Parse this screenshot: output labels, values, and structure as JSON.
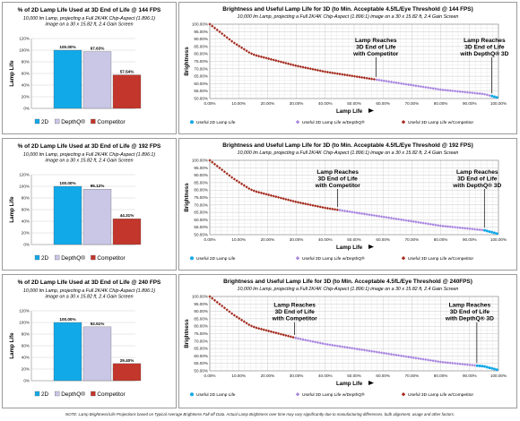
{
  "chart_data": [
    {
      "type": "bar",
      "title": "% of 2D Lamp Life Used at 3D End of Life @ 144 FPS",
      "subtitle": [
        "10,000 lm Lamp, projecting a Full 2K/4K Chip-Aspect (1.896:1)",
        "image on a 30 x 15.82 ft, 2.4 Gain Screen"
      ],
      "ylabel": "Lamp Life",
      "ylim": [
        0,
        120
      ],
      "yticks": [
        "0%",
        "20%",
        "40%",
        "60%",
        "80%",
        "100%",
        "120%"
      ],
      "series": [
        {
          "name": "2D",
          "color": "#12a9e8",
          "values": [
            100.0
          ],
          "label": "100.00%"
        },
        {
          "name": "DepthQ®",
          "color": "#c9c6e6",
          "values": [
            97.63
          ],
          "label": "97.63%"
        },
        {
          "name": "Competitor",
          "color": "#c2362b",
          "values": [
            57.54
          ],
          "label": "57.54%"
        }
      ]
    },
    {
      "type": "line",
      "title": "Brightness and Useful Lamp Life for 3D (to Min. Acceptable 4.5fL/Eye Threshold @ 144 FPS)",
      "subtitle": [
        "10,000 lm Lamp, projecting a Full 2K/4K Chip-Aspect (1.896:1) image on a 30 x 15.82 ft, 2.4 Gain Screen"
      ],
      "xlabel": "Lamp Life",
      "ylabel": "Brightness",
      "xlim": [
        0,
        100
      ],
      "ylim": [
        50,
        100
      ],
      "xticks": [
        "0.00%",
        "10.00%",
        "20.00%",
        "30.00%",
        "40.00%",
        "50.00%",
        "60.00%",
        "70.00%",
        "80.00%",
        "90.00%",
        "100.00%"
      ],
      "yticks": [
        "50.00%",
        "55.00%",
        "60.00%",
        "65.00%",
        "70.00%",
        "75.00%",
        "80.00%",
        "85.00%",
        "90.00%",
        "95.00%",
        "100.00%"
      ],
      "decay_x": [
        0,
        2,
        4,
        6,
        8,
        10,
        12,
        14,
        16,
        20,
        25,
        30,
        35,
        40,
        45,
        50,
        55,
        60,
        65,
        70,
        75,
        80,
        85,
        90,
        95,
        98,
        100
      ],
      "decay_y": [
        100,
        97,
        94,
        91,
        88,
        85.5,
        83,
        80.5,
        79,
        77,
        74.5,
        72,
        70,
        68,
        66.5,
        65,
        63.5,
        62,
        60.5,
        59,
        57.5,
        56,
        55,
        54,
        53,
        51.5,
        50.5
      ],
      "competitor_end": 57.54,
      "depthq_end": 97.63,
      "annotations": [
        {
          "text": [
            "Lamp Reaches",
            "3D End of Life",
            "with Competitor"
          ],
          "x": 57.54,
          "y": 88
        },
        {
          "text": [
            "Lamp Reaches",
            "3D End of Life",
            "with DepthQ® 3D"
          ],
          "x": 97.63,
          "y": 88
        }
      ],
      "legend": [
        "Useful 2D Lamp Life",
        "Useful 3D Lamp Life w/DepthQ®",
        "Useful 3D Lamp Life w/Competitor"
      ]
    },
    {
      "type": "bar",
      "title": "% of 2D Lamp Life Used at 3D End of Life @ 192 FPS",
      "subtitle": [
        "10,000 lm Lamp, projecting a Full 2K/4K Chip-Aspect (1.896:1)",
        "image on a 30 x 15.82 ft, 2.4 Gain Screen"
      ],
      "ylabel": "Lamp Life",
      "ylim": [
        0,
        120
      ],
      "yticks": [
        "0%",
        "20%",
        "40%",
        "60%",
        "80%",
        "100%",
        "120%"
      ],
      "series": [
        {
          "name": "2D",
          "color": "#12a9e8",
          "values": [
            100.0
          ],
          "label": "100.00%"
        },
        {
          "name": "DepthQ®",
          "color": "#c9c6e6",
          "values": [
            95.12
          ],
          "label": "95.12%"
        },
        {
          "name": "Competitor",
          "color": "#c2362b",
          "values": [
            44.31
          ],
          "label": "44.31%"
        }
      ]
    },
    {
      "type": "line",
      "title": "Brightness and Useful Lamp Life for 3D (to Min. Acceptable 4.5fL/Eye Threshold @ 192 FPS)",
      "subtitle": [
        "10,000 lm Lamp, projecting a Full 2K/4K Chip-Aspect (1.896:1) image on a 30 x 15.82 ft, 2.4 Gain Screen"
      ],
      "xlabel": "Lamp Life",
      "ylabel": "Brightness",
      "xlim": [
        0,
        100
      ],
      "ylim": [
        50,
        100
      ],
      "xticks": [
        "0.00%",
        "10.00%",
        "20.00%",
        "30.00%",
        "40.00%",
        "50.00%",
        "60.00%",
        "70.00%",
        "80.00%",
        "90.00%",
        "100.00%"
      ],
      "yticks": [
        "50.00%",
        "55.00%",
        "60.00%",
        "65.00%",
        "70.00%",
        "75.00%",
        "80.00%",
        "85.00%",
        "90.00%",
        "95.00%",
        "100.00%"
      ],
      "decay_x": [
        0,
        2,
        4,
        6,
        8,
        10,
        12,
        14,
        16,
        20,
        25,
        30,
        35,
        40,
        45,
        50,
        55,
        60,
        65,
        70,
        75,
        80,
        85,
        90,
        95,
        98,
        100
      ],
      "decay_y": [
        100,
        97,
        94,
        91,
        88,
        85.5,
        83,
        80.5,
        79,
        77,
        74.5,
        72,
        70,
        68,
        66.5,
        65,
        63.5,
        62,
        60.5,
        59,
        57.5,
        56,
        55,
        54,
        53,
        51.5,
        50.5
      ],
      "competitor_end": 44.31,
      "depthq_end": 95.12,
      "annotations": [
        {
          "text": [
            "Lamp Reaches",
            "3D End of Life",
            "with Competitor"
          ],
          "x": 44.31,
          "y": 91
        },
        {
          "text": [
            "Lamp Reaches",
            "3D End of Life",
            "with DepthQ® 3D"
          ],
          "x": 95.12,
          "y": 91
        }
      ],
      "legend": [
        "Useful 2D Lamp Life",
        "Useful 3D Lamp Life w/DepthQ®",
        "Useful 3D Lamp Life w/Competitor"
      ]
    },
    {
      "type": "bar",
      "title": "% of 2D Lamp Life Used at 3D End of Life @ 240 FPS",
      "subtitle": [
        "10,000 lm Lamp, projecting a Full 2K/4K Chip-Aspect (1.896:1)",
        "image on a 30 x 15.82 ft, 2.4 Gain Screen"
      ],
      "ylabel": "Lamp Life",
      "ylim": [
        0,
        120
      ],
      "yticks": [
        "0%",
        "20%",
        "40%",
        "60%",
        "80%",
        "100%",
        "120%"
      ],
      "series": [
        {
          "name": "2D",
          "color": "#12a9e8",
          "values": [
            100.0
          ],
          "label": "100.00%"
        },
        {
          "name": "DepthQ®",
          "color": "#c9c6e6",
          "values": [
            92.51
          ],
          "label": "92.51%"
        },
        {
          "name": "Competitor",
          "color": "#c2362b",
          "values": [
            29.4
          ],
          "label": "29.40%"
        }
      ]
    },
    {
      "type": "line",
      "title": "Brightness and Useful Lamp Life for 3D (to Min. Acceptable 4.5fL/Eye Threshold @ 240FPS)",
      "subtitle": [
        "10,000 lm Lamp, projecting a Full 2K/4K Chip-Aspect (1.896:1) image on a 30 x 15.82 ft, 2.4 Gain Screen"
      ],
      "xlabel": "Lamp Life",
      "ylabel": "Brightness",
      "xlim": [
        0,
        100
      ],
      "ylim": [
        50,
        100
      ],
      "xticks": [
        "0.00%",
        "10.00%",
        "20.00%",
        "30.00%",
        "40.00%",
        "50.00%",
        "60.00%",
        "70.00%",
        "80.00%",
        "90.00%",
        "100.00%"
      ],
      "yticks": [
        "50.00%",
        "55.00%",
        "60.00%",
        "65.00%",
        "70.00%",
        "75.00%",
        "80.00%",
        "85.00%",
        "90.00%",
        "95.00%",
        "100.00%"
      ],
      "decay_x": [
        0,
        2,
        4,
        6,
        8,
        10,
        12,
        14,
        16,
        20,
        25,
        30,
        35,
        40,
        45,
        50,
        55,
        60,
        65,
        70,
        75,
        80,
        85,
        90,
        95,
        98,
        100
      ],
      "decay_y": [
        100,
        97,
        94,
        91,
        88,
        85.5,
        83,
        80.5,
        79,
        77,
        74.5,
        72,
        70,
        68,
        66.5,
        65,
        63.5,
        62,
        60.5,
        59,
        57.5,
        56,
        55,
        54,
        53,
        51.5,
        50.5
      ],
      "competitor_end": 29.4,
      "depthq_end": 92.51,
      "annotations": [
        {
          "text": [
            "Lamp Reaches",
            "3D End of Life",
            "with Competitor"
          ],
          "x": 29.4,
          "y": 93
        },
        {
          "text": [
            "Lamp Reaches",
            "3D End of Life",
            "with DepthQ® 3D"
          ],
          "x": 92.51,
          "y": 93
        }
      ],
      "legend": [
        "Useful 2D Lamp Life",
        "Useful 3D Lamp Life w/DepthQ®",
        "Useful 3D Lamp Life w/Competitor"
      ]
    }
  ],
  "colors": {
    "twod": "#12a9e8",
    "depthq": "#a884e0",
    "competitor": "#a3291c",
    "depthq_bar": "#c9c6e6",
    "competitor_bar": "#c2362b",
    "grid": "#c8c8c8"
  },
  "note": "NOTE: Lamp Brightness/Life Projections based on Typical Average Brightness Fall-off Data. Actual Lamp Brightness over time may vary significantly due to manufacturing differences, bulb alignment, usage and other factors."
}
